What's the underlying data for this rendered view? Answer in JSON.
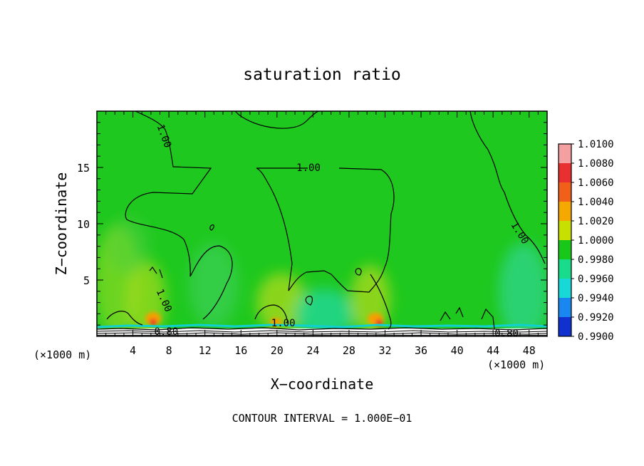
{
  "chart_data": {
    "type": "heatmap",
    "title": "saturation ratio",
    "xlabel": "X−coordinate",
    "ylabel": "Z−coordinate",
    "x_unit_left": "(×1000 m)",
    "x_unit_right": "(×1000 m)",
    "footer": "CONTOUR INTERVAL = 1.000E−01",
    "xlim": [
      0,
      50
    ],
    "ylim": [
      0,
      20
    ],
    "x_ticks": [
      4,
      8,
      12,
      16,
      20,
      24,
      28,
      32,
      36,
      40,
      44,
      48
    ],
    "y_ticks": [
      5,
      10,
      15
    ],
    "colorbar": {
      "levels": [
        "1.0100",
        "1.0080",
        "1.0060",
        "1.0040",
        "1.0020",
        "1.0000",
        "0.9980",
        "0.9960",
        "0.9940",
        "0.9920",
        "0.9900"
      ],
      "colors": [
        "#f5a0a0",
        "#e83030",
        "#f06018",
        "#f5a800",
        "#c8e000",
        "#18c818",
        "#18dc8c",
        "#18d8d8",
        "#1888f0",
        "#1030d0",
        "#7820c8"
      ]
    },
    "contour_labels": [
      {
        "text": "1.00",
        "x": 7.5,
        "z": 17.8,
        "angle": 70
      },
      {
        "text": "1.00",
        "x": 23.5,
        "z": 15.0,
        "angle": 0
      },
      {
        "text": "1.00",
        "x": 47.0,
        "z": 9.2,
        "angle": 58
      },
      {
        "text": "1.00",
        "x": 7.5,
        "z": 3.2,
        "angle": 66
      },
      {
        "text": "1.00",
        "x": 20.7,
        "z": 1.2,
        "angle": 0
      },
      {
        "text": "0.80",
        "x": 7.7,
        "z": 0.45,
        "angle": 0
      },
      {
        "text": "0.80",
        "x": 45.5,
        "z": 0.3,
        "angle": 0
      }
    ]
  }
}
